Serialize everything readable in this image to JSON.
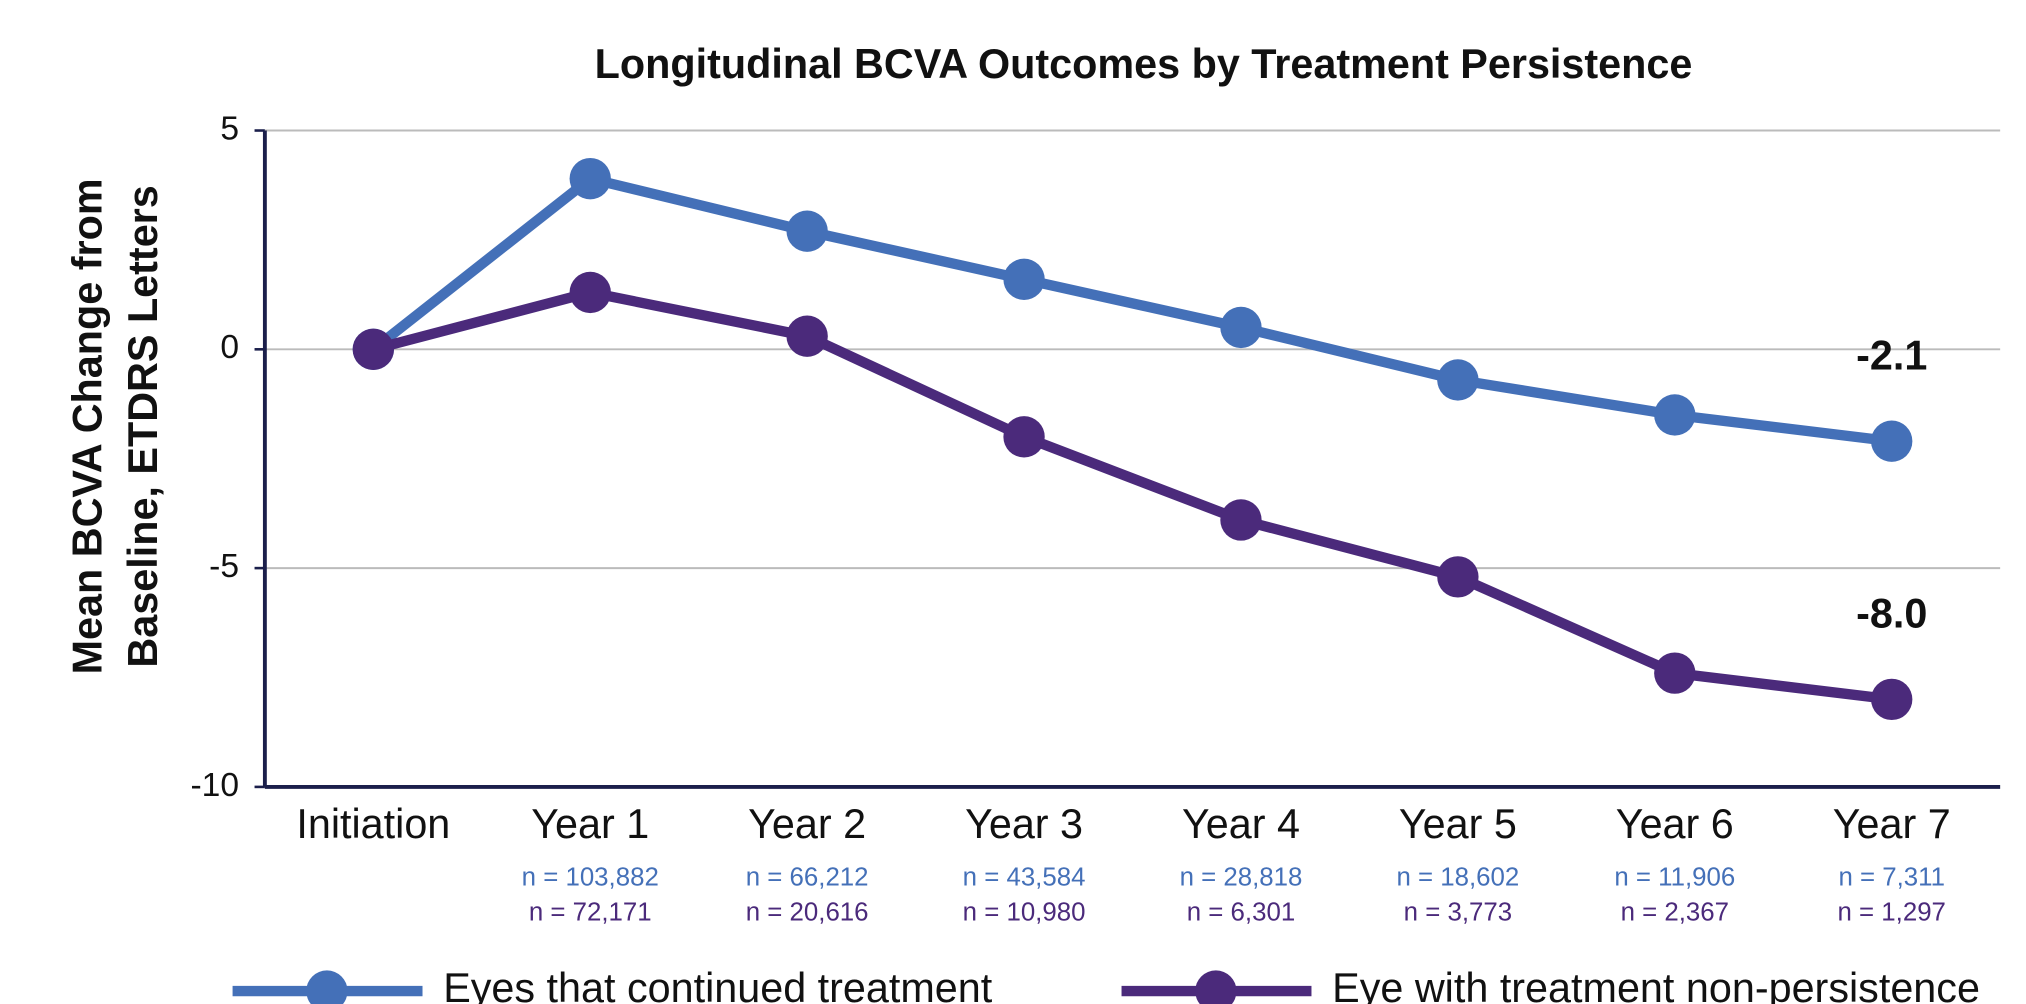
{
  "chart_data": {
    "type": "line",
    "title": "Longitudinal BCVA Outcomes by Treatment Persistence",
    "y_label": [
      "Mean BCVA Change from",
      "Baseline, ETDRS Letters"
    ],
    "categories": [
      "Initiation",
      "Year 1",
      "Year 2",
      "Year 3",
      "Year 4",
      "Year 5",
      "Year 6",
      "Year 7"
    ],
    "series": [
      {
        "name": "Eyes that continued treatment",
        "color": "#4470b8",
        "values": [
          0,
          3.9,
          2.7,
          1.6,
          0.5,
          -0.7,
          -1.5,
          -2.1
        ],
        "end_label": "-2.1",
        "n_labels": [
          null,
          "n = 103,882",
          "n = 66,212",
          "n = 43,584",
          "n = 28,818",
          "n = 18,602",
          "n = 11,906",
          "n = 7,311"
        ]
      },
      {
        "name": "Eye with treatment non-persistence",
        "color": "#4b2a7b",
        "values": [
          0,
          1.3,
          0.3,
          -2.0,
          -3.9,
          -5.2,
          -7.4,
          -8.0
        ],
        "end_label": "-8.0",
        "n_labels": [
          null,
          "n = 72,171",
          "n = 20,616",
          "n = 10,980",
          "n = 6,301",
          "n = 3,773",
          "n = 2,367",
          "n = 1,297"
        ]
      }
    ],
    "ylim": [
      -10,
      5
    ],
    "yticks": [
      -10,
      -5,
      0,
      5
    ],
    "grid": true,
    "legend": "bottom"
  }
}
